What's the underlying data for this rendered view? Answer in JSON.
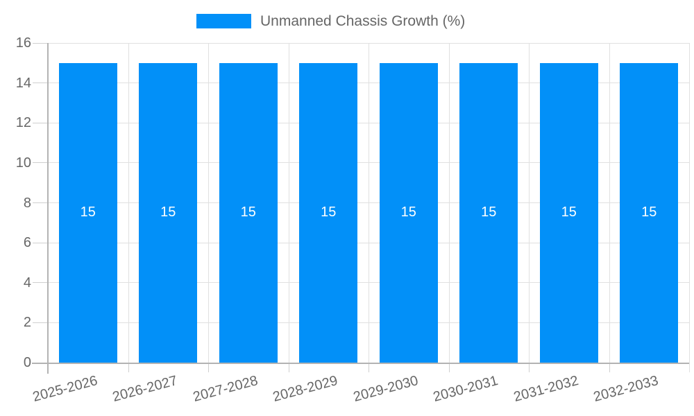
{
  "chart": {
    "colors": {
      "bar": "#0290f8",
      "grid": "#e0e0e0",
      "axis": "#b3b3b3",
      "tick": "#cfcfcf",
      "tick_text": "#666666",
      "value_label": "#ffffff",
      "background": "#ffffff"
    }
  },
  "chart_data": {
    "type": "bar",
    "title": "",
    "xlabel": "",
    "ylabel": "",
    "categories": [
      "2025-2026",
      "2026-2027",
      "2027-2028",
      "2028-2029",
      "2029-2030",
      "2030-2031",
      "2031-2032",
      "2032-2033"
    ],
    "series": [
      {
        "name": "Unmanned Chassis Growth (%)",
        "values": [
          15,
          15,
          15,
          15,
          15,
          15,
          15,
          15
        ]
      }
    ],
    "value_labels": [
      "15",
      "15",
      "15",
      "15",
      "15",
      "15",
      "15",
      "15"
    ],
    "ylim": [
      0,
      16
    ],
    "ytick_step": 2,
    "ytick_labels": [
      "0",
      "2",
      "4",
      "6",
      "8",
      "10",
      "12",
      "14",
      "16"
    ],
    "grid": true,
    "legend_position": "top",
    "value_label_position": "inside-center",
    "x_label_rotation_deg": -15
  }
}
